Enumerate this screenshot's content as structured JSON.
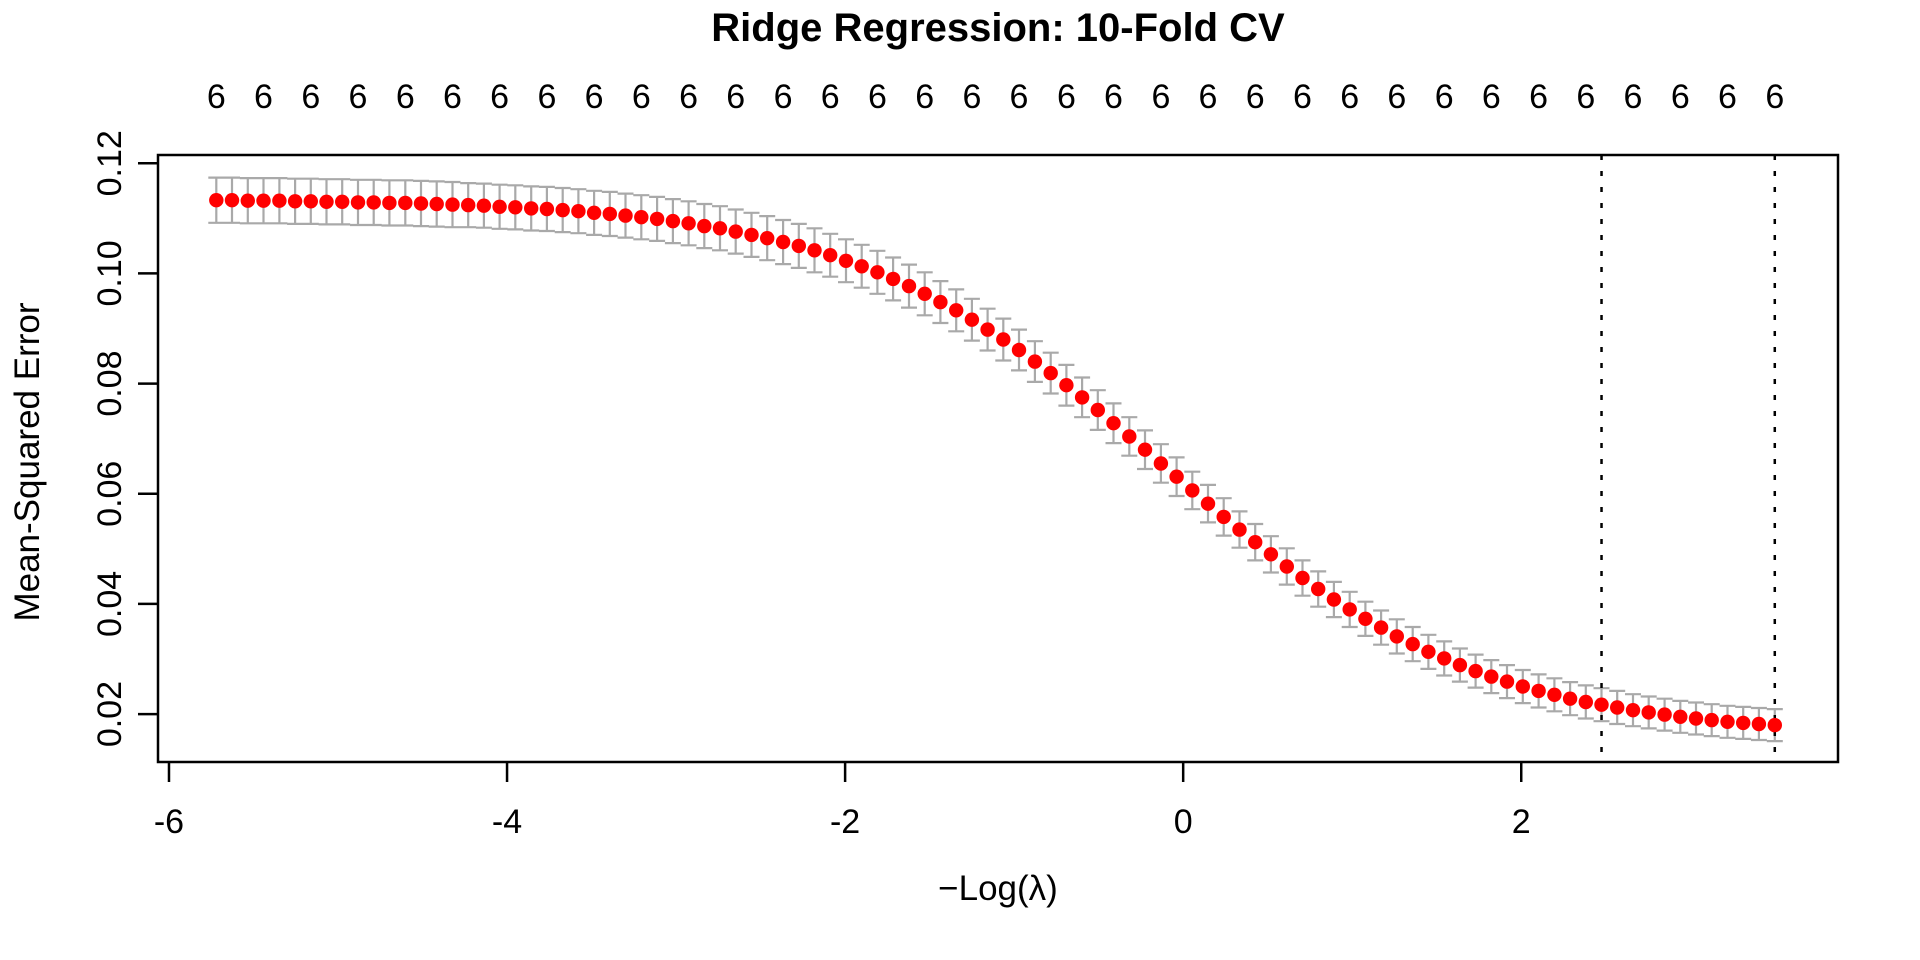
{
  "chart_data": {
    "type": "scatter",
    "title": "Ridge Regression: 10-Fold CV",
    "xlabel": "−Log(λ)",
    "ylabel": "Mean-Squared Error",
    "grid": false,
    "legend": "none",
    "xlim": [
      -6.065,
      3.874
    ],
    "ylim": [
      0.0113,
      0.1215
    ],
    "x_ticks": [
      {
        "value": -6,
        "label": "-6"
      },
      {
        "value": -4,
        "label": "-4"
      },
      {
        "value": -2,
        "label": "-2"
      },
      {
        "value": 0,
        "label": "0"
      },
      {
        "value": 2,
        "label": "2"
      }
    ],
    "y_ticks": [
      {
        "value": 0.02,
        "label": "0.02"
      },
      {
        "value": 0.04,
        "label": "0.04"
      },
      {
        "value": 0.06,
        "label": "0.06"
      },
      {
        "value": 0.08,
        "label": "0.08"
      },
      {
        "value": 0.1,
        "label": "0.10"
      },
      {
        "value": 0.12,
        "label": "0.12"
      }
    ],
    "top_axis": {
      "labels": [
        "6",
        "6",
        "6",
        "6",
        "6",
        "6",
        "6",
        "6",
        "6",
        "6",
        "6",
        "6",
        "6",
        "6",
        "6",
        "6",
        "6",
        "6",
        "6",
        "6",
        "6",
        "6",
        "6",
        "6",
        "6",
        "6",
        "6",
        "6",
        "6",
        "6",
        "6",
        "6",
        "6",
        "6"
      ],
      "every_nth_point": 3
    },
    "vlines": [
      {
        "x": 2.475,
        "style": "dotted"
      },
      {
        "x": 3.5,
        "style": "dotted"
      }
    ],
    "colors": {
      "point": "#FF0000",
      "error_bar": "#A9A9A9",
      "axis": "#000000",
      "vline": "#000000",
      "background": "#FFFFFF"
    },
    "series": [
      {
        "name": "cv-mean-squared-error",
        "x": [
          -5.72,
          -5.627,
          -5.534,
          -5.441,
          -5.347,
          -5.254,
          -5.161,
          -5.068,
          -4.975,
          -4.882,
          -4.789,
          -4.696,
          -4.602,
          -4.509,
          -4.416,
          -4.323,
          -4.23,
          -4.137,
          -4.044,
          -3.951,
          -3.857,
          -3.764,
          -3.671,
          -3.578,
          -3.485,
          -3.392,
          -3.299,
          -3.206,
          -3.112,
          -3.019,
          -2.926,
          -2.833,
          -2.74,
          -2.647,
          -2.554,
          -2.461,
          -2.367,
          -2.274,
          -2.181,
          -2.088,
          -1.995,
          -1.902,
          -1.809,
          -1.716,
          -1.622,
          -1.529,
          -1.436,
          -1.343,
          -1.25,
          -1.157,
          -1.064,
          -0.971,
          -0.877,
          -0.784,
          -0.691,
          -0.598,
          -0.505,
          -0.412,
          -0.319,
          -0.226,
          -0.132,
          -0.039,
          0.054,
          0.147,
          0.24,
          0.333,
          0.426,
          0.519,
          0.613,
          0.706,
          0.799,
          0.892,
          0.985,
          1.078,
          1.171,
          1.264,
          1.358,
          1.451,
          1.544,
          1.637,
          1.73,
          1.823,
          1.916,
          2.009,
          2.103,
          2.196,
          2.289,
          2.382,
          2.475,
          2.568,
          2.661,
          2.754,
          2.848,
          2.941,
          3.034,
          3.127,
          3.22,
          3.313,
          3.406,
          3.5
        ],
        "y": [
          0.1133,
          0.1133,
          0.1132,
          0.1132,
          0.1132,
          0.1131,
          0.1131,
          0.113,
          0.113,
          0.1129,
          0.1129,
          0.1128,
          0.1128,
          0.1127,
          0.1126,
          0.1125,
          0.1124,
          0.1123,
          0.1121,
          0.112,
          0.1118,
          0.1117,
          0.1115,
          0.1113,
          0.111,
          0.1108,
          0.1105,
          0.1102,
          0.1099,
          0.1095,
          0.1091,
          0.1086,
          0.1082,
          0.1076,
          0.107,
          0.1064,
          0.1057,
          0.105,
          0.1042,
          0.1033,
          0.1023,
          0.1013,
          0.1002,
          0.099,
          0.0977,
          0.0963,
          0.0948,
          0.0933,
          0.0916,
          0.0898,
          0.088,
          0.0861,
          0.084,
          0.0819,
          0.0797,
          0.0775,
          0.0752,
          0.0728,
          0.0704,
          0.068,
          0.0655,
          0.0631,
          0.0606,
          0.0582,
          0.0558,
          0.0535,
          0.0512,
          0.049,
          0.0468,
          0.0447,
          0.0427,
          0.0408,
          0.039,
          0.0373,
          0.0357,
          0.0341,
          0.0327,
          0.0313,
          0.0301,
          0.0289,
          0.0278,
          0.0268,
          0.0259,
          0.025,
          0.0242,
          0.0235,
          0.0228,
          0.0222,
          0.0217,
          0.0212,
          0.0207,
          0.0203,
          0.0199,
          0.0195,
          0.0192,
          0.0189,
          0.0186,
          0.0184,
          0.0182,
          0.018
        ],
        "se": [
          0.0041,
          0.0041,
          0.0041,
          0.0041,
          0.0041,
          0.0041,
          0.0041,
          0.0041,
          0.0041,
          0.0041,
          0.0041,
          0.0041,
          0.0041,
          0.0041,
          0.0041,
          0.0041,
          0.004,
          0.004,
          0.004,
          0.004,
          0.004,
          0.004,
          0.004,
          0.004,
          0.004,
          0.004,
          0.004,
          0.004,
          0.004,
          0.004,
          0.004,
          0.004,
          0.004,
          0.004,
          0.004,
          0.004,
          0.004,
          0.004,
          0.004,
          0.0039,
          0.0039,
          0.0039,
          0.0039,
          0.0039,
          0.0039,
          0.0039,
          0.0038,
          0.0038,
          0.0038,
          0.0038,
          0.0038,
          0.0037,
          0.0037,
          0.0037,
          0.0037,
          0.0036,
          0.0036,
          0.0036,
          0.0035,
          0.0035,
          0.0035,
          0.0035,
          0.0034,
          0.0034,
          0.0034,
          0.0033,
          0.0033,
          0.0033,
          0.0033,
          0.0032,
          0.0032,
          0.0032,
          0.0032,
          0.0031,
          0.0031,
          0.0031,
          0.0031,
          0.0031,
          0.0031,
          0.003,
          0.003,
          0.003,
          0.003,
          0.003,
          0.003,
          0.003,
          0.003,
          0.003,
          0.003,
          0.003,
          0.0029,
          0.0029,
          0.0029,
          0.0029,
          0.0029,
          0.0029,
          0.0029,
          0.0029,
          0.0029,
          0.0029
        ]
      }
    ]
  }
}
